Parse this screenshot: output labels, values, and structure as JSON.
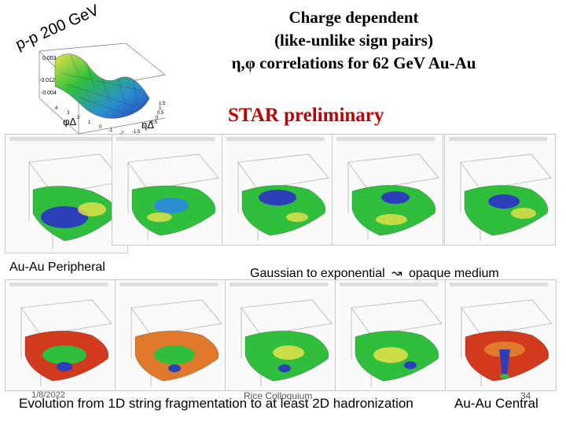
{
  "slide": {
    "title_lines": [
      "Charge dependent",
      "(like-unlike sign pairs)",
      "η,φ correlations for 62 GeV Au-Au"
    ],
    "preliminary": "STAR preliminary",
    "pp_label": "p-p 200 GeV",
    "caption_peripheral": "Au-Au Peripheral",
    "caption_opaque": "Gaussian to exponential",
    "caption_opaque_tail": "opaque medium",
    "caption_arrow": "↝",
    "footer_main": "Evolution from 1D string fragmentation to at least 2D hadronization",
    "footer_date": "1/8/2022",
    "footer_venue": "Rice Colloquium",
    "footer_page": "34",
    "footer_right": "Au-Au Central"
  },
  "pp_axes": {
    "z_ticks": [
      "0.003",
      "-0.012",
      "-0.004"
    ],
    "phi_label": "φΔ",
    "eta_label": "ηΔ",
    "phi_ticks": [
      "4",
      "3",
      "2",
      "1",
      "0",
      "-1"
    ],
    "eta_ticks": [
      "1.5",
      "1",
      "0.5",
      "0",
      "-0.5",
      "-1",
      "-1.5",
      "-2"
    ]
  },
  "colors": {
    "accent_red": "#c00000",
    "surface_blue": "#2a3fb8",
    "surface_green": "#2fbf3c",
    "surface_yellow": "#e8e24a",
    "surface_red": "#d23a1e"
  }
}
